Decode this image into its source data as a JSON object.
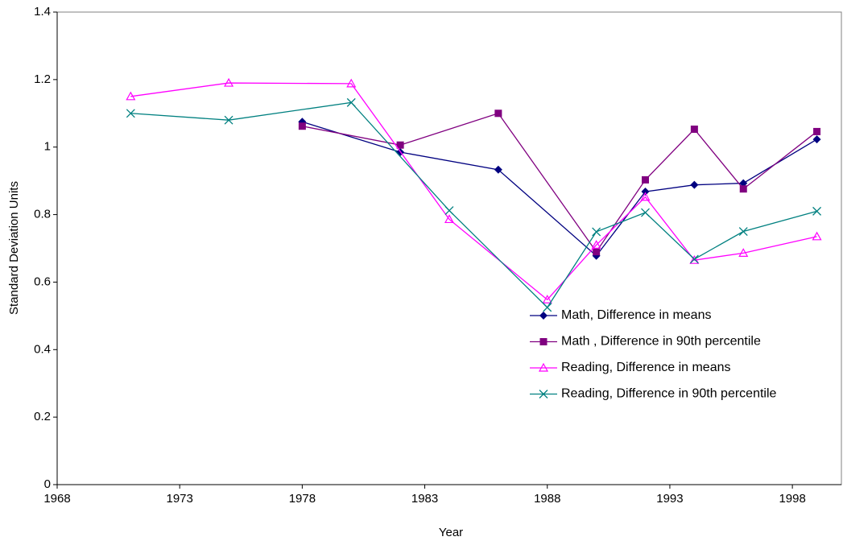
{
  "chart_data": {
    "type": "line",
    "x_label": "Year",
    "y_label": "Standard Deviation Units",
    "xlim": [
      1968,
      2000
    ],
    "xticks": [
      1968,
      1973,
      1978,
      1983,
      1988,
      1993,
      1998
    ],
    "ylim": [
      0,
      1.4
    ],
    "yticks": [
      0,
      0.2,
      0.4,
      0.6,
      0.8,
      1,
      1.2,
      1.4
    ],
    "grid": false,
    "legend": "lower right",
    "series": [
      {
        "name": "Math, Difference in means",
        "color": "#000080",
        "marker": "diamond",
        "x": [
          1978,
          1982,
          1986,
          1990,
          1992,
          1994,
          1996,
          1999
        ],
        "values": [
          1.075,
          0.985,
          0.933,
          0.678,
          0.868,
          0.888,
          0.893,
          1.023
        ]
      },
      {
        "name": "Math , Difference in 90th percentile",
        "color": "#800080",
        "marker": "square",
        "x": [
          1978,
          1982,
          1986,
          1990,
          1992,
          1994,
          1996,
          1999
        ],
        "values": [
          1.062,
          1.006,
          1.1,
          0.69,
          0.903,
          1.053,
          0.876,
          1.046
        ]
      },
      {
        "name": "Reading, Difference in means",
        "color": "#ff00ff",
        "marker": "triangle",
        "x": [
          1971,
          1975,
          1980,
          1984,
          1988,
          1990,
          1992,
          1994,
          1996,
          1999
        ],
        "values": [
          1.15,
          1.19,
          1.188,
          0.786,
          0.548,
          0.71,
          0.852,
          0.665,
          0.686,
          0.735
        ]
      },
      {
        "name": "Reading, Difference in 90th percentile",
        "color": "#008080",
        "marker": "x",
        "x": [
          1971,
          1975,
          1980,
          1984,
          1988,
          1990,
          1992,
          1994,
          1996,
          1999
        ],
        "values": [
          1.1,
          1.08,
          1.132,
          0.812,
          0.525,
          0.749,
          0.806,
          0.668,
          0.75,
          0.81
        ]
      }
    ]
  }
}
